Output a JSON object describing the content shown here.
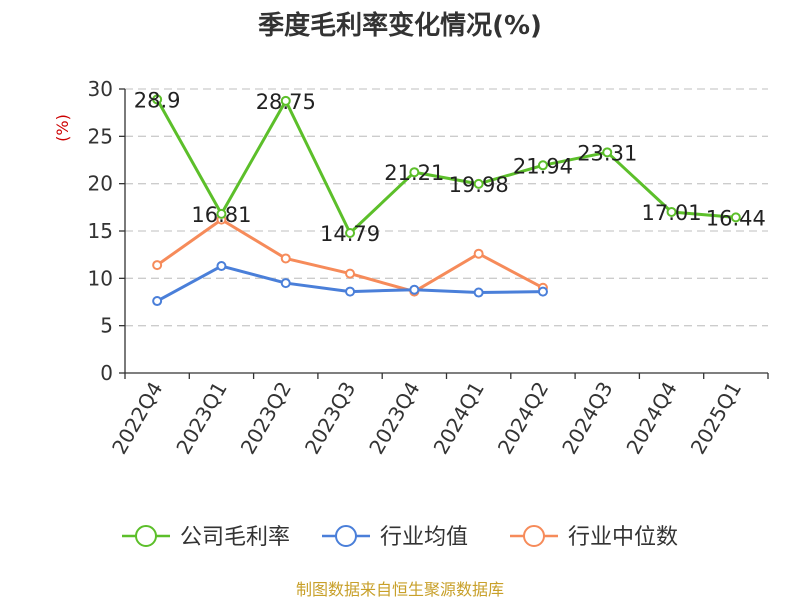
{
  "colors": {
    "company": "#5cbf2a",
    "industry_avg": "#4a7fd9",
    "industry_median": "#f68b5a",
    "grid": "#cccccc",
    "axis": "#333333",
    "ylabel": "#cc0000",
    "footer": "#c8a02a"
  },
  "footer": "制图数据来自恒生聚源数据库",
  "chart_data": {
    "type": "line",
    "title": "季度毛利率变化情况(%)",
    "xlabel": "",
    "ylabel": "(%)",
    "ylim": [
      0,
      30
    ],
    "yticks": [
      0,
      5,
      10,
      15,
      20,
      25,
      30
    ],
    "grid": true,
    "legend_position": "bottom",
    "categories": [
      "2022Q4",
      "2023Q1",
      "2023Q2",
      "2023Q3",
      "2023Q4",
      "2024Q1",
      "2024Q2",
      "2024Q3",
      "2024Q4",
      "2025Q1"
    ],
    "series": [
      {
        "name": "公司毛利率",
        "color_key": "company",
        "show_labels": true,
        "values": [
          28.9,
          16.81,
          28.75,
          14.79,
          21.21,
          19.98,
          21.94,
          23.31,
          17.01,
          16.44
        ]
      },
      {
        "name": "行业均值",
        "color_key": "industry_avg",
        "show_labels": false,
        "values": [
          7.6,
          11.3,
          9.5,
          8.6,
          8.8,
          8.5,
          8.6,
          null,
          null,
          null
        ]
      },
      {
        "name": "行业中位数",
        "color_key": "industry_median",
        "show_labels": false,
        "values": [
          11.4,
          16.2,
          12.1,
          10.5,
          8.6,
          12.6,
          9.0,
          null,
          null,
          null
        ]
      }
    ]
  }
}
